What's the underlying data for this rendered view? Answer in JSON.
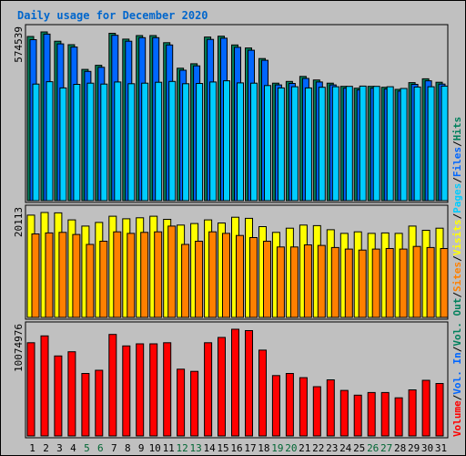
{
  "chart_data": {
    "type": "bar",
    "title": "Daily usage for December 2020",
    "categories": [
      "1",
      "2",
      "3",
      "4",
      "5",
      "6",
      "7",
      "8",
      "9",
      "10",
      "11",
      "12",
      "13",
      "14",
      "15",
      "16",
      "17",
      "18",
      "19",
      "20",
      "21",
      "22",
      "23",
      "24",
      "25",
      "26",
      "27",
      "28",
      "29",
      "30",
      "31"
    ],
    "weekend_days": [
      "5",
      "6",
      "12",
      "13",
      "19",
      "20",
      "26",
      "27"
    ],
    "colors": {
      "title": "#0066cc",
      "weekday": "#000000",
      "weekend": "#006633",
      "hits": "#00805c",
      "files": "#0066ff",
      "pages": "#00ccff",
      "visits": "#ffff00",
      "sites": "#ff8000",
      "kbytes": "#ff0000",
      "divider": "#000000",
      "axis_label": "#000000"
    },
    "panels": [
      {
        "id": "top",
        "max_label": "574539",
        "ymax": 574539,
        "series": [
          {
            "name": "Hits",
            "color": "#00805c",
            "values": [
              559000,
              574539,
              543000,
              531000,
              447000,
              461000,
              570000,
              550000,
              562000,
              562000,
              538000,
              451000,
              466000,
              557000,
              560000,
              530000,
              520000,
              484000,
              400000,
              406000,
              423000,
              411000,
              400000,
              389000,
              383000,
              389000,
              386000,
              379000,
              402000,
              415000,
              403000
            ]
          },
          {
            "name": "Files",
            "color": "#0066ff",
            "values": [
              548000,
              567000,
              534000,
              523000,
              440000,
              454000,
              563000,
              543000,
              555000,
              555000,
              530000,
              444000,
              459000,
              549000,
              553000,
              522000,
              512000,
              478000,
              394000,
              399000,
              416000,
              404000,
              394000,
              383000,
              377000,
              383000,
              380000,
              373000,
              396000,
              408000,
              397000
            ]
          },
          {
            "name": "Pages",
            "color": "#00ccff",
            "values": [
              397000,
              405000,
              384000,
              396000,
              400000,
              397000,
              404000,
              398000,
              400000,
              403000,
              406000,
              398000,
              399000,
              404000,
              408000,
              401000,
              400000,
              392000,
              384000,
              388000,
              384000,
              386000,
              388000,
              389000,
              390000,
              389000,
              388000,
              382000,
              387000,
              388000,
              390000
            ]
          }
        ]
      },
      {
        "id": "middle",
        "max_label": "20113",
        "ymax": 20113,
        "series": [
          {
            "name": "Visits",
            "color": "#ffff00",
            "values": [
              19600,
              20113,
              20050,
              18700,
              17500,
              18200,
              19400,
              18900,
              19100,
              19400,
              18800,
              17700,
              18000,
              18700,
              18100,
              19200,
              19000,
              17400,
              16300,
              17100,
              17700,
              17600,
              16800,
              16100,
              16400,
              16100,
              16200,
              16100,
              17500,
              16700,
              17100
            ]
          },
          {
            "name": "Sites",
            "color": "#ff8000",
            "values": [
              16000,
              16200,
              16300,
              15900,
              14000,
              14600,
              16400,
              16100,
              16300,
              16400,
              17500,
              14000,
              14600,
              16400,
              16100,
              15700,
              15300,
              14600,
              13500,
              13500,
              13900,
              13800,
              13400,
              13100,
              12900,
              13100,
              13200,
              13100,
              13600,
              13400,
              13200
            ]
          }
        ]
      },
      {
        "id": "bottom",
        "max_label": "10074976",
        "ymax": 10074976,
        "series": [
          {
            "name": "Volume",
            "color": "#ff0000",
            "values": [
              8800000,
              9450000,
              7550000,
              7950000,
              5900000,
              6200000,
              9580000,
              8500000,
              8700000,
              8700000,
              8800000,
              6300000,
              6100000,
              8800000,
              9300000,
              10074976,
              9950000,
              8100000,
              5700000,
              5900000,
              5500000,
              4650000,
              5300000,
              4300000,
              3850000,
              4100000,
              4100000,
              3600000,
              4350000,
              5250000,
              4950000
            ]
          }
        ]
      }
    ],
    "legend": [
      {
        "text": "Volume",
        "color": "#ff0000"
      },
      {
        "text": "/",
        "color": "#000000"
      },
      {
        "text": "Vol. In",
        "color": "#0066ff"
      },
      {
        "text": "/",
        "color": "#000000"
      },
      {
        "text": "Vol. Out",
        "color": "#00805c"
      },
      {
        "text": "/",
        "color": "#000000"
      },
      {
        "text": "Sites",
        "color": "#ff8000"
      },
      {
        "text": "/",
        "color": "#000000"
      },
      {
        "text": "Visits",
        "color": "#ffff00"
      },
      {
        "text": "/",
        "color": "#000000"
      },
      {
        "text": "Pages",
        "color": "#00ccff"
      },
      {
        "text": "/",
        "color": "#000000"
      },
      {
        "text": "Files",
        "color": "#0066ff"
      },
      {
        "text": "/",
        "color": "#000000"
      },
      {
        "text": "Hits",
        "color": "#00805c"
      }
    ],
    "legend_placement": "right-vertical",
    "grid": false
  }
}
